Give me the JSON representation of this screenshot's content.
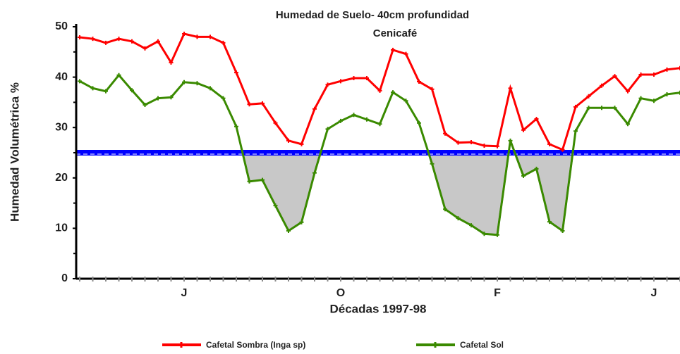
{
  "chart_data": {
    "type": "line",
    "title": "Humedad de Suelo- 40cm profundidad",
    "subtitle": "Cenicafé",
    "x_label": "Décadas 1997-98",
    "y_label": "Humedad Volumétrica %",
    "categories": [
      null,
      null,
      null,
      null,
      null,
      null,
      null,
      null,
      "J",
      null,
      null,
      null,
      null,
      null,
      null,
      null,
      null,
      null,
      null,
      null,
      "O",
      null,
      null,
      null,
      null,
      null,
      null,
      null,
      null,
      null,
      null,
      null,
      "F",
      null,
      null,
      null,
      null,
      null,
      null,
      null,
      null,
      null,
      null,
      null,
      "J",
      null,
      null
    ],
    "series": [
      {
        "name": "Cafetal Sombra (Inga sp)",
        "color": "#ff0000",
        "values": [
          47.9,
          47.6,
          46.8,
          47.6,
          47.1,
          45.7,
          47.1,
          42.9,
          48.6,
          48.0,
          48.0,
          46.8,
          40.9,
          34.6,
          34.8,
          30.9,
          27.4,
          26.7,
          33.7,
          38.5,
          39.2,
          39.8,
          39.8,
          37.3,
          45.4,
          44.6,
          39.1,
          37.6,
          28.8,
          27.0,
          27.1,
          26.4,
          26.3,
          37.8,
          29.5,
          31.7,
          26.7,
          25.6,
          34.1,
          36.2,
          38.3,
          40.2,
          37.2,
          40.5,
          40.5,
          41.5,
          41.8
        ]
      },
      {
        "name": "Cafetal Sol",
        "color": "#3a8a00",
        "values": [
          39.2,
          37.8,
          37.2,
          40.4,
          37.4,
          34.5,
          35.8,
          36.0,
          39.0,
          38.8,
          37.8,
          35.8,
          30.2,
          19.3,
          19.6,
          14.5,
          9.5,
          11.2,
          21.0,
          29.7,
          31.3,
          32.5,
          31.6,
          30.7,
          37.0,
          35.3,
          30.9,
          22.8,
          13.8,
          12.0,
          10.6,
          8.9,
          8.7,
          27.4,
          20.4,
          21.8,
          11.3,
          9.5,
          29.3,
          33.9,
          33.9,
          33.9,
          30.7,
          35.8,
          35.3,
          36.6,
          36.9
        ]
      }
    ],
    "threshold": 25,
    "threshold_color": "#0000ff",
    "shade_color": "#c8c8c8",
    "ylim": [
      0,
      50
    ],
    "yticks": [
      0,
      10,
      20,
      30,
      40,
      50
    ],
    "legend": "bottom"
  }
}
